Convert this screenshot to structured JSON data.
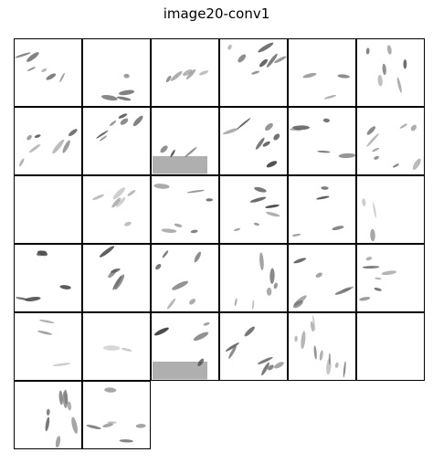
{
  "title": "image20-conv1",
  "chart_data": {
    "type": "heatmap",
    "title": "image20-conv1",
    "layout": {
      "rows": 6,
      "cols": 6,
      "panels": 32
    },
    "colormap": "grayscale-inverted",
    "background": "#ffffff",
    "panels": [
      {
        "index": 1,
        "strokes": 6,
        "intensity": 0.7,
        "orientation": "diagonal"
      },
      {
        "index": 2,
        "strokes": 4,
        "intensity": 0.8,
        "orientation": "horizontal"
      },
      {
        "index": 3,
        "strokes": 5,
        "intensity": 0.4,
        "orientation": "diagonal"
      },
      {
        "index": 4,
        "strokes": 7,
        "intensity": 0.7,
        "orientation": "diagonal"
      },
      {
        "index": 5,
        "strokes": 3,
        "intensity": 0.5,
        "orientation": "horizontal"
      },
      {
        "index": 6,
        "strokes": 6,
        "intensity": 0.6,
        "orientation": "vertical"
      },
      {
        "index": 7,
        "strokes": 7,
        "intensity": 0.7,
        "orientation": "diagonal"
      },
      {
        "index": 8,
        "strokes": 6,
        "intensity": 0.8,
        "orientation": "diagonal"
      },
      {
        "index": 9,
        "strokes": 3,
        "intensity": 0.9,
        "orientation": "bottom-band"
      },
      {
        "index": 10,
        "strokes": 7,
        "intensity": 0.8,
        "orientation": "diagonal"
      },
      {
        "index": 11,
        "strokes": 5,
        "intensity": 0.8,
        "orientation": "horizontal"
      },
      {
        "index": 12,
        "strokes": 8,
        "intensity": 0.6,
        "orientation": "diagonal"
      },
      {
        "index": 13,
        "strokes": 0,
        "intensity": 0.0,
        "orientation": "none"
      },
      {
        "index": 14,
        "strokes": 6,
        "intensity": 0.3,
        "orientation": "diagonal"
      },
      {
        "index": 15,
        "strokes": 6,
        "intensity": 0.7,
        "orientation": "horizontal"
      },
      {
        "index": 16,
        "strokes": 6,
        "intensity": 0.8,
        "orientation": "horizontal"
      },
      {
        "index": 17,
        "strokes": 4,
        "intensity": 0.8,
        "orientation": "horizontal"
      },
      {
        "index": 18,
        "strokes": 3,
        "intensity": 0.3,
        "orientation": "vertical"
      },
      {
        "index": 19,
        "strokes": 5,
        "intensity": 0.9,
        "orientation": "horizontal"
      },
      {
        "index": 20,
        "strokes": 5,
        "intensity": 0.7,
        "orientation": "diagonal"
      },
      {
        "index": 21,
        "strokes": 6,
        "intensity": 0.7,
        "orientation": "diagonal"
      },
      {
        "index": 22,
        "strokes": 6,
        "intensity": 0.6,
        "orientation": "vertical"
      },
      {
        "index": 23,
        "strokes": 6,
        "intensity": 0.7,
        "orientation": "diagonal"
      },
      {
        "index": 24,
        "strokes": 6,
        "intensity": 0.6,
        "orientation": "horizontal"
      },
      {
        "index": 25,
        "strokes": 3,
        "intensity": 0.3,
        "orientation": "horizontal"
      },
      {
        "index": 26,
        "strokes": 2,
        "intensity": 0.2,
        "orientation": "horizontal"
      },
      {
        "index": 27,
        "strokes": 4,
        "intensity": 0.9,
        "orientation": "bottom-band"
      },
      {
        "index": 28,
        "strokes": 7,
        "intensity": 0.6,
        "orientation": "diagonal"
      },
      {
        "index": 29,
        "strokes": 10,
        "intensity": 0.4,
        "orientation": "vertical"
      },
      {
        "index": 30,
        "strokes": 0,
        "intensity": 0.0,
        "orientation": "none"
      },
      {
        "index": 31,
        "strokes": 8,
        "intensity": 0.6,
        "orientation": "vertical"
      },
      {
        "index": 32,
        "strokes": 6,
        "intensity": 0.6,
        "orientation": "horizontal"
      }
    ]
  }
}
